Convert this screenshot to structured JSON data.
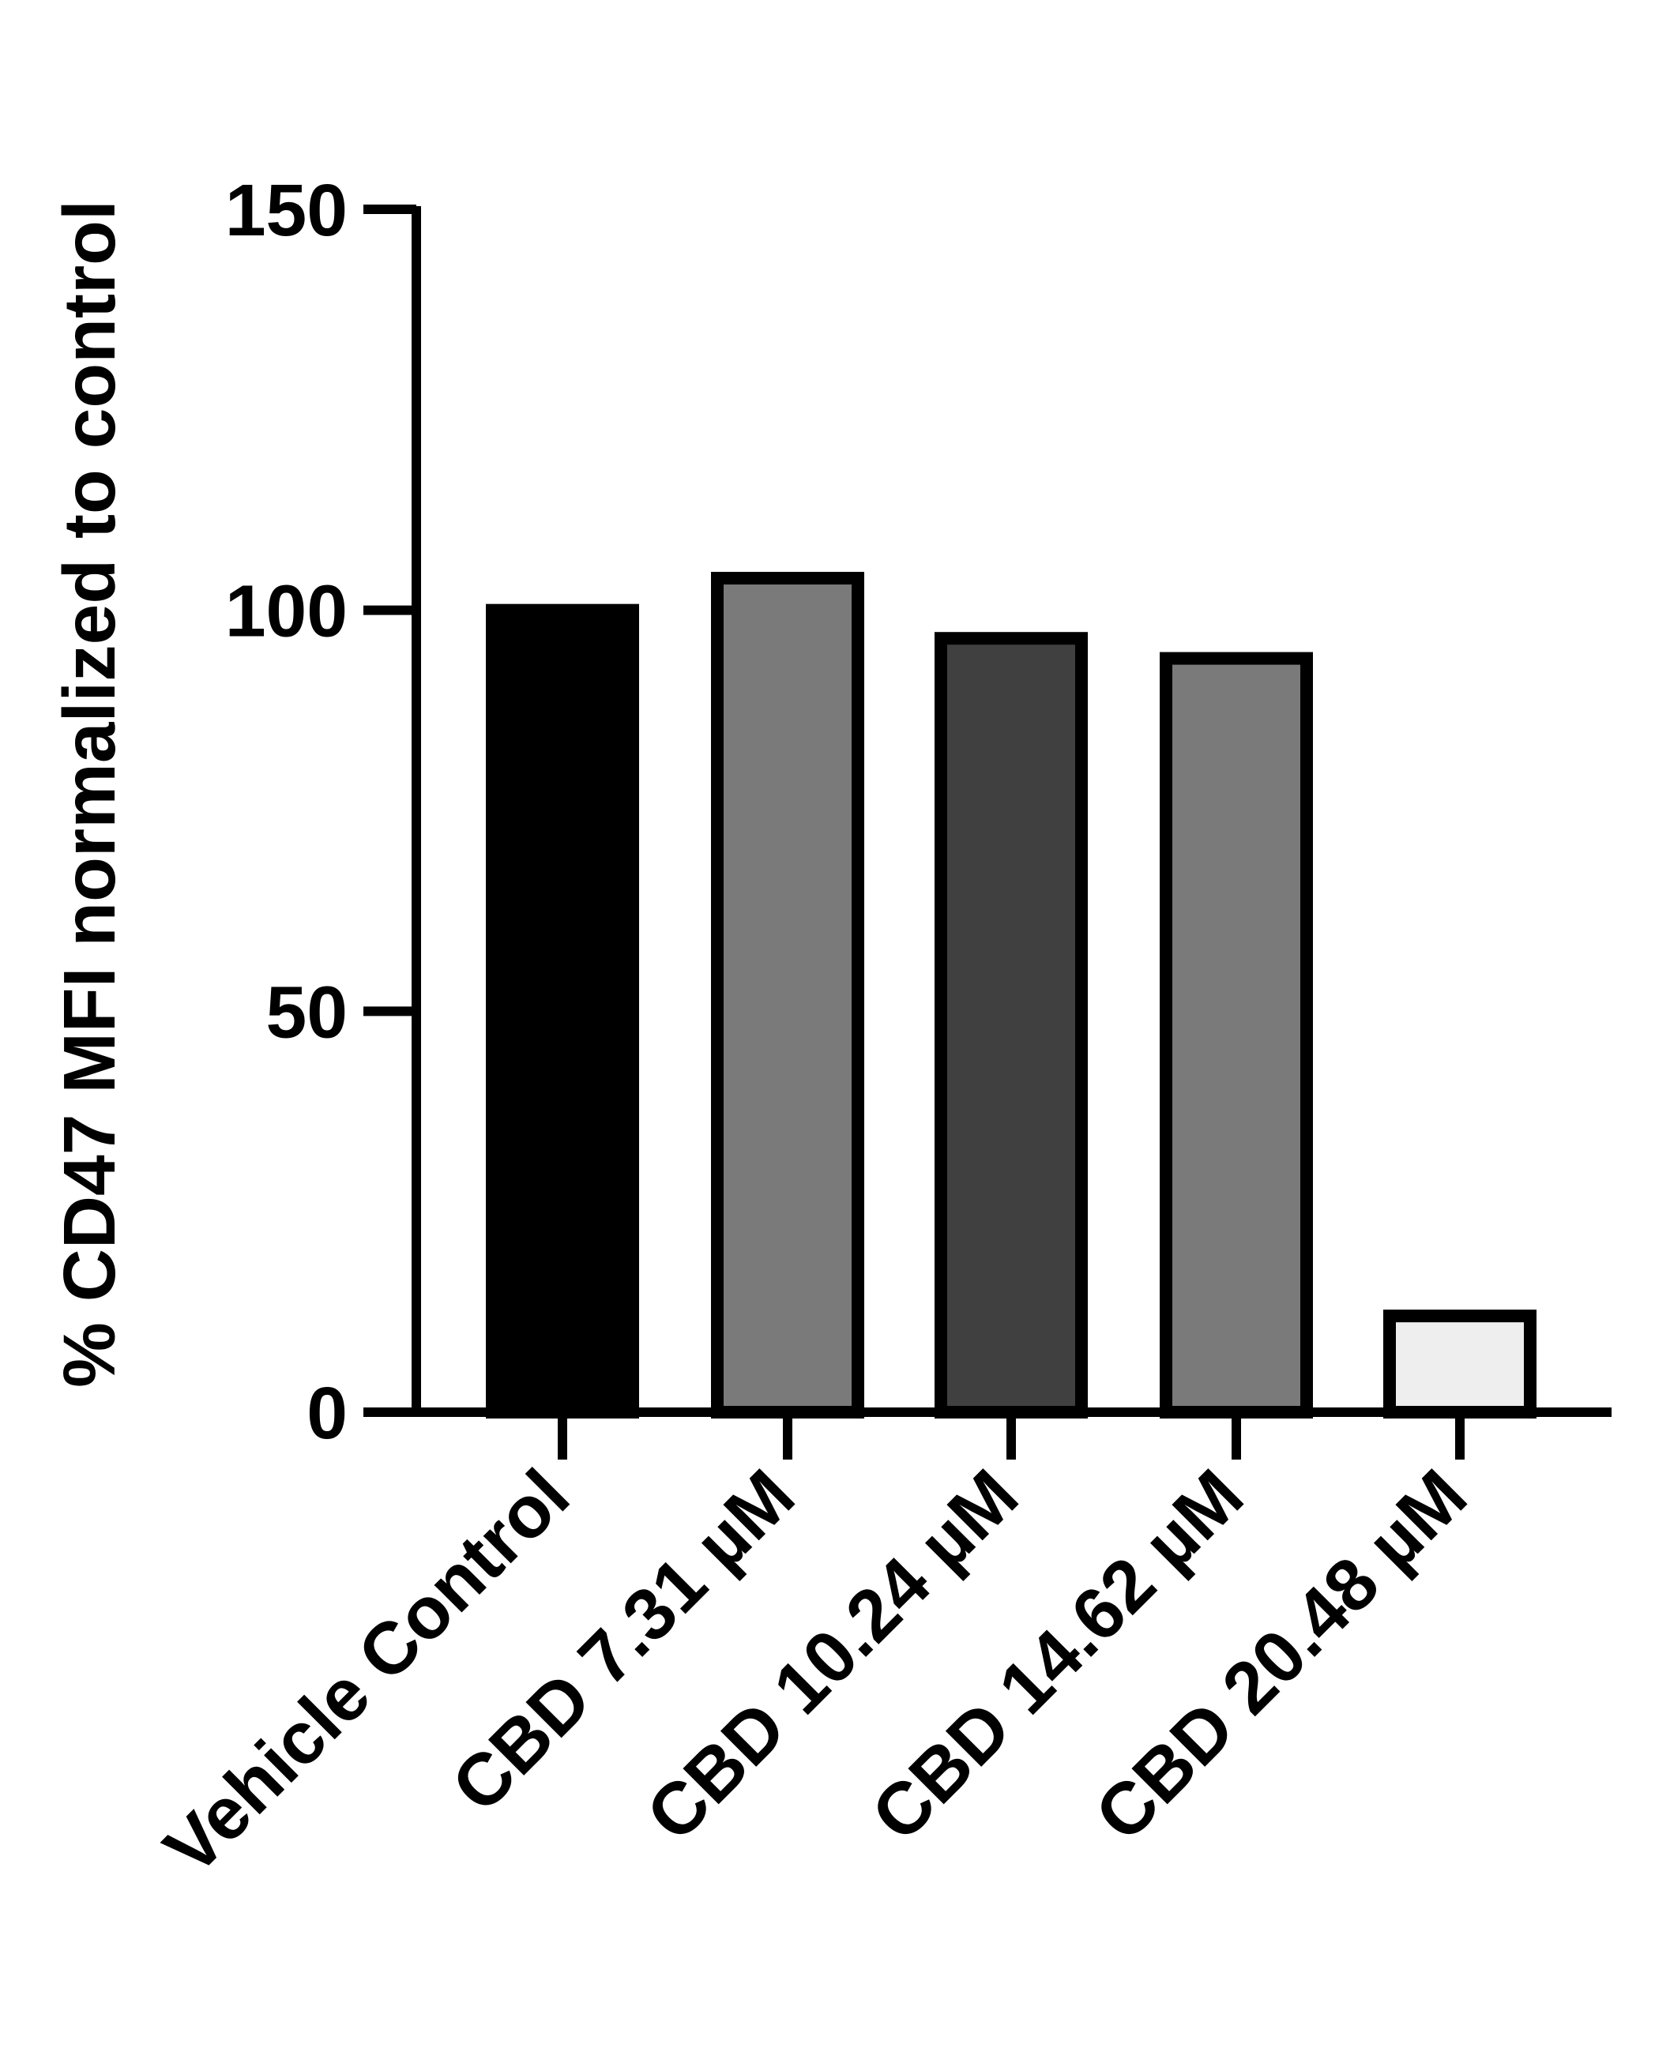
{
  "chart_data": {
    "type": "bar",
    "title": "",
    "xlabel": "",
    "ylabel": "% CD47 MFI normalized to control",
    "categories": [
      "Vehicle Control",
      "CBD 7.31 µM",
      "CBD 10.24 µM",
      "CBD 14.62 µM",
      "CBD 20.48 µM"
    ],
    "values": [
      100,
      104,
      96.5,
      94,
      12
    ],
    "colors": [
      "#000000",
      "#7a7a7a",
      "#404040",
      "#7a7a7a",
      "#eeeeee"
    ],
    "ylim": [
      0,
      150
    ],
    "yticks": [
      0,
      50,
      100,
      150
    ],
    "grid": false,
    "legend": "none"
  }
}
